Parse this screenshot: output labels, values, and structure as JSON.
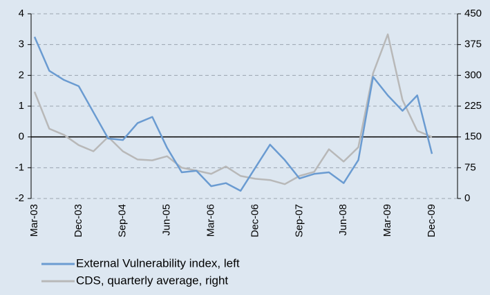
{
  "chart_data": {
    "type": "line",
    "categories": [
      "Mar-03",
      null,
      null,
      "Dec-03",
      null,
      null,
      "Sep-04",
      null,
      null,
      "Jun-05",
      null,
      null,
      "Mar-06",
      null,
      null,
      "Dec-06",
      null,
      null,
      "Sep-07",
      null,
      null,
      "Jun-08",
      null,
      null,
      "Mar-09",
      null,
      null,
      "Dec-09"
    ],
    "series": [
      {
        "name": "External Vulnerability index, left",
        "color": "#6a9bd1",
        "values": [
          3.25,
          2.15,
          1.85,
          1.65,
          0.8,
          -0.05,
          -0.1,
          0.45,
          0.65,
          -0.35,
          -1.15,
          -1.1,
          -1.6,
          -1.5,
          -1.75,
          -1.0,
          -0.25,
          -0.75,
          -1.35,
          -1.2,
          -1.15,
          -1.5,
          -0.75,
          1.95,
          1.35,
          0.85,
          1.35,
          -0.55
        ]
      },
      {
        "name": "CDS, quarterly average, right",
        "color": "#b8b8b8",
        "axis": "y2",
        "values": [
          260,
          170,
          155,
          130,
          115,
          150,
          115,
          95,
          93,
          103,
          75,
          68,
          60,
          78,
          55,
          48,
          45,
          35,
          55,
          65,
          120,
          90,
          125,
          305,
          400,
          240,
          165,
          150
        ]
      }
    ],
    "ylim": [
      -2,
      4
    ],
    "yticks": [
      -2,
      -1,
      0,
      1,
      2,
      3,
      4
    ],
    "y2lim": [
      0,
      450
    ],
    "y2ticks": [
      0,
      75,
      150,
      225,
      300,
      375,
      450
    ],
    "grid": true
  }
}
